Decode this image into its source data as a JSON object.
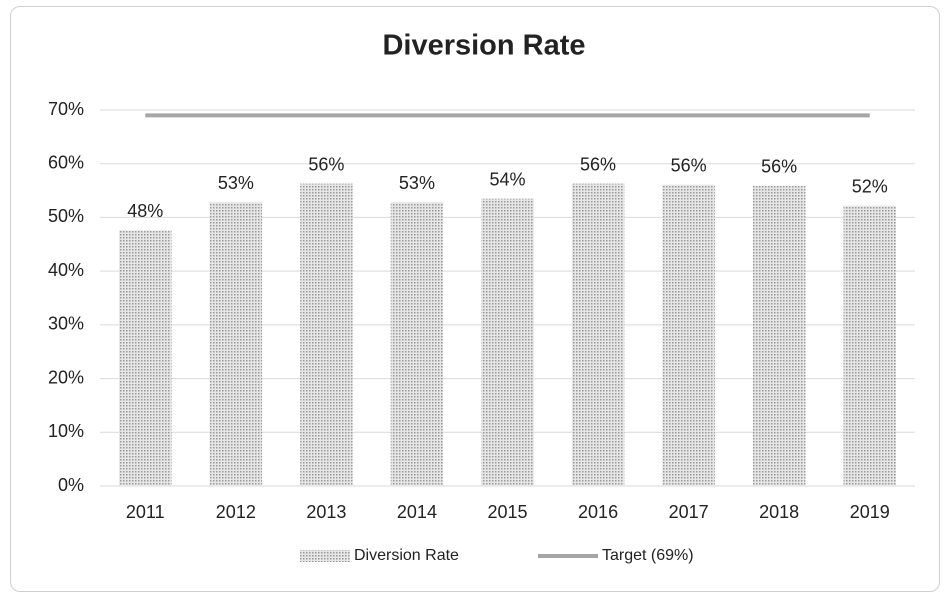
{
  "chart_data": {
    "type": "bar",
    "title": "Diversion Rate",
    "categories": [
      "2011",
      "2012",
      "2013",
      "2014",
      "2015",
      "2016",
      "2017",
      "2018",
      "2019"
    ],
    "series": [
      {
        "name": "Diversion Rate",
        "color": "#cfcfcf",
        "type": "bar",
        "values": [
          47.6,
          52.8,
          56.3,
          52.8,
          53.5,
          56.3,
          56.1,
          55.9,
          52.2
        ],
        "value_labels": [
          "48%",
          "53%",
          "56%",
          "53%",
          "54%",
          "56%",
          "56%",
          "56%",
          "52%"
        ]
      },
      {
        "name": "Target (69%)",
        "color": "#a6a6a6",
        "type": "line",
        "values": [
          69,
          69,
          69,
          69,
          69,
          69,
          69,
          69,
          69
        ]
      }
    ],
    "ylim": [
      0,
      70
    ],
    "yticks": [
      {
        "value": 0,
        "label": "0%"
      },
      {
        "value": 10,
        "label": "10%"
      },
      {
        "value": 20,
        "label": "20%"
      },
      {
        "value": 30,
        "label": "30%"
      },
      {
        "value": 40,
        "label": "40%"
      },
      {
        "value": 50,
        "label": "50%"
      },
      {
        "value": 60,
        "label": "60%"
      },
      {
        "value": 70,
        "label": "70%"
      }
    ],
    "grid": true,
    "legend": "bottom"
  }
}
